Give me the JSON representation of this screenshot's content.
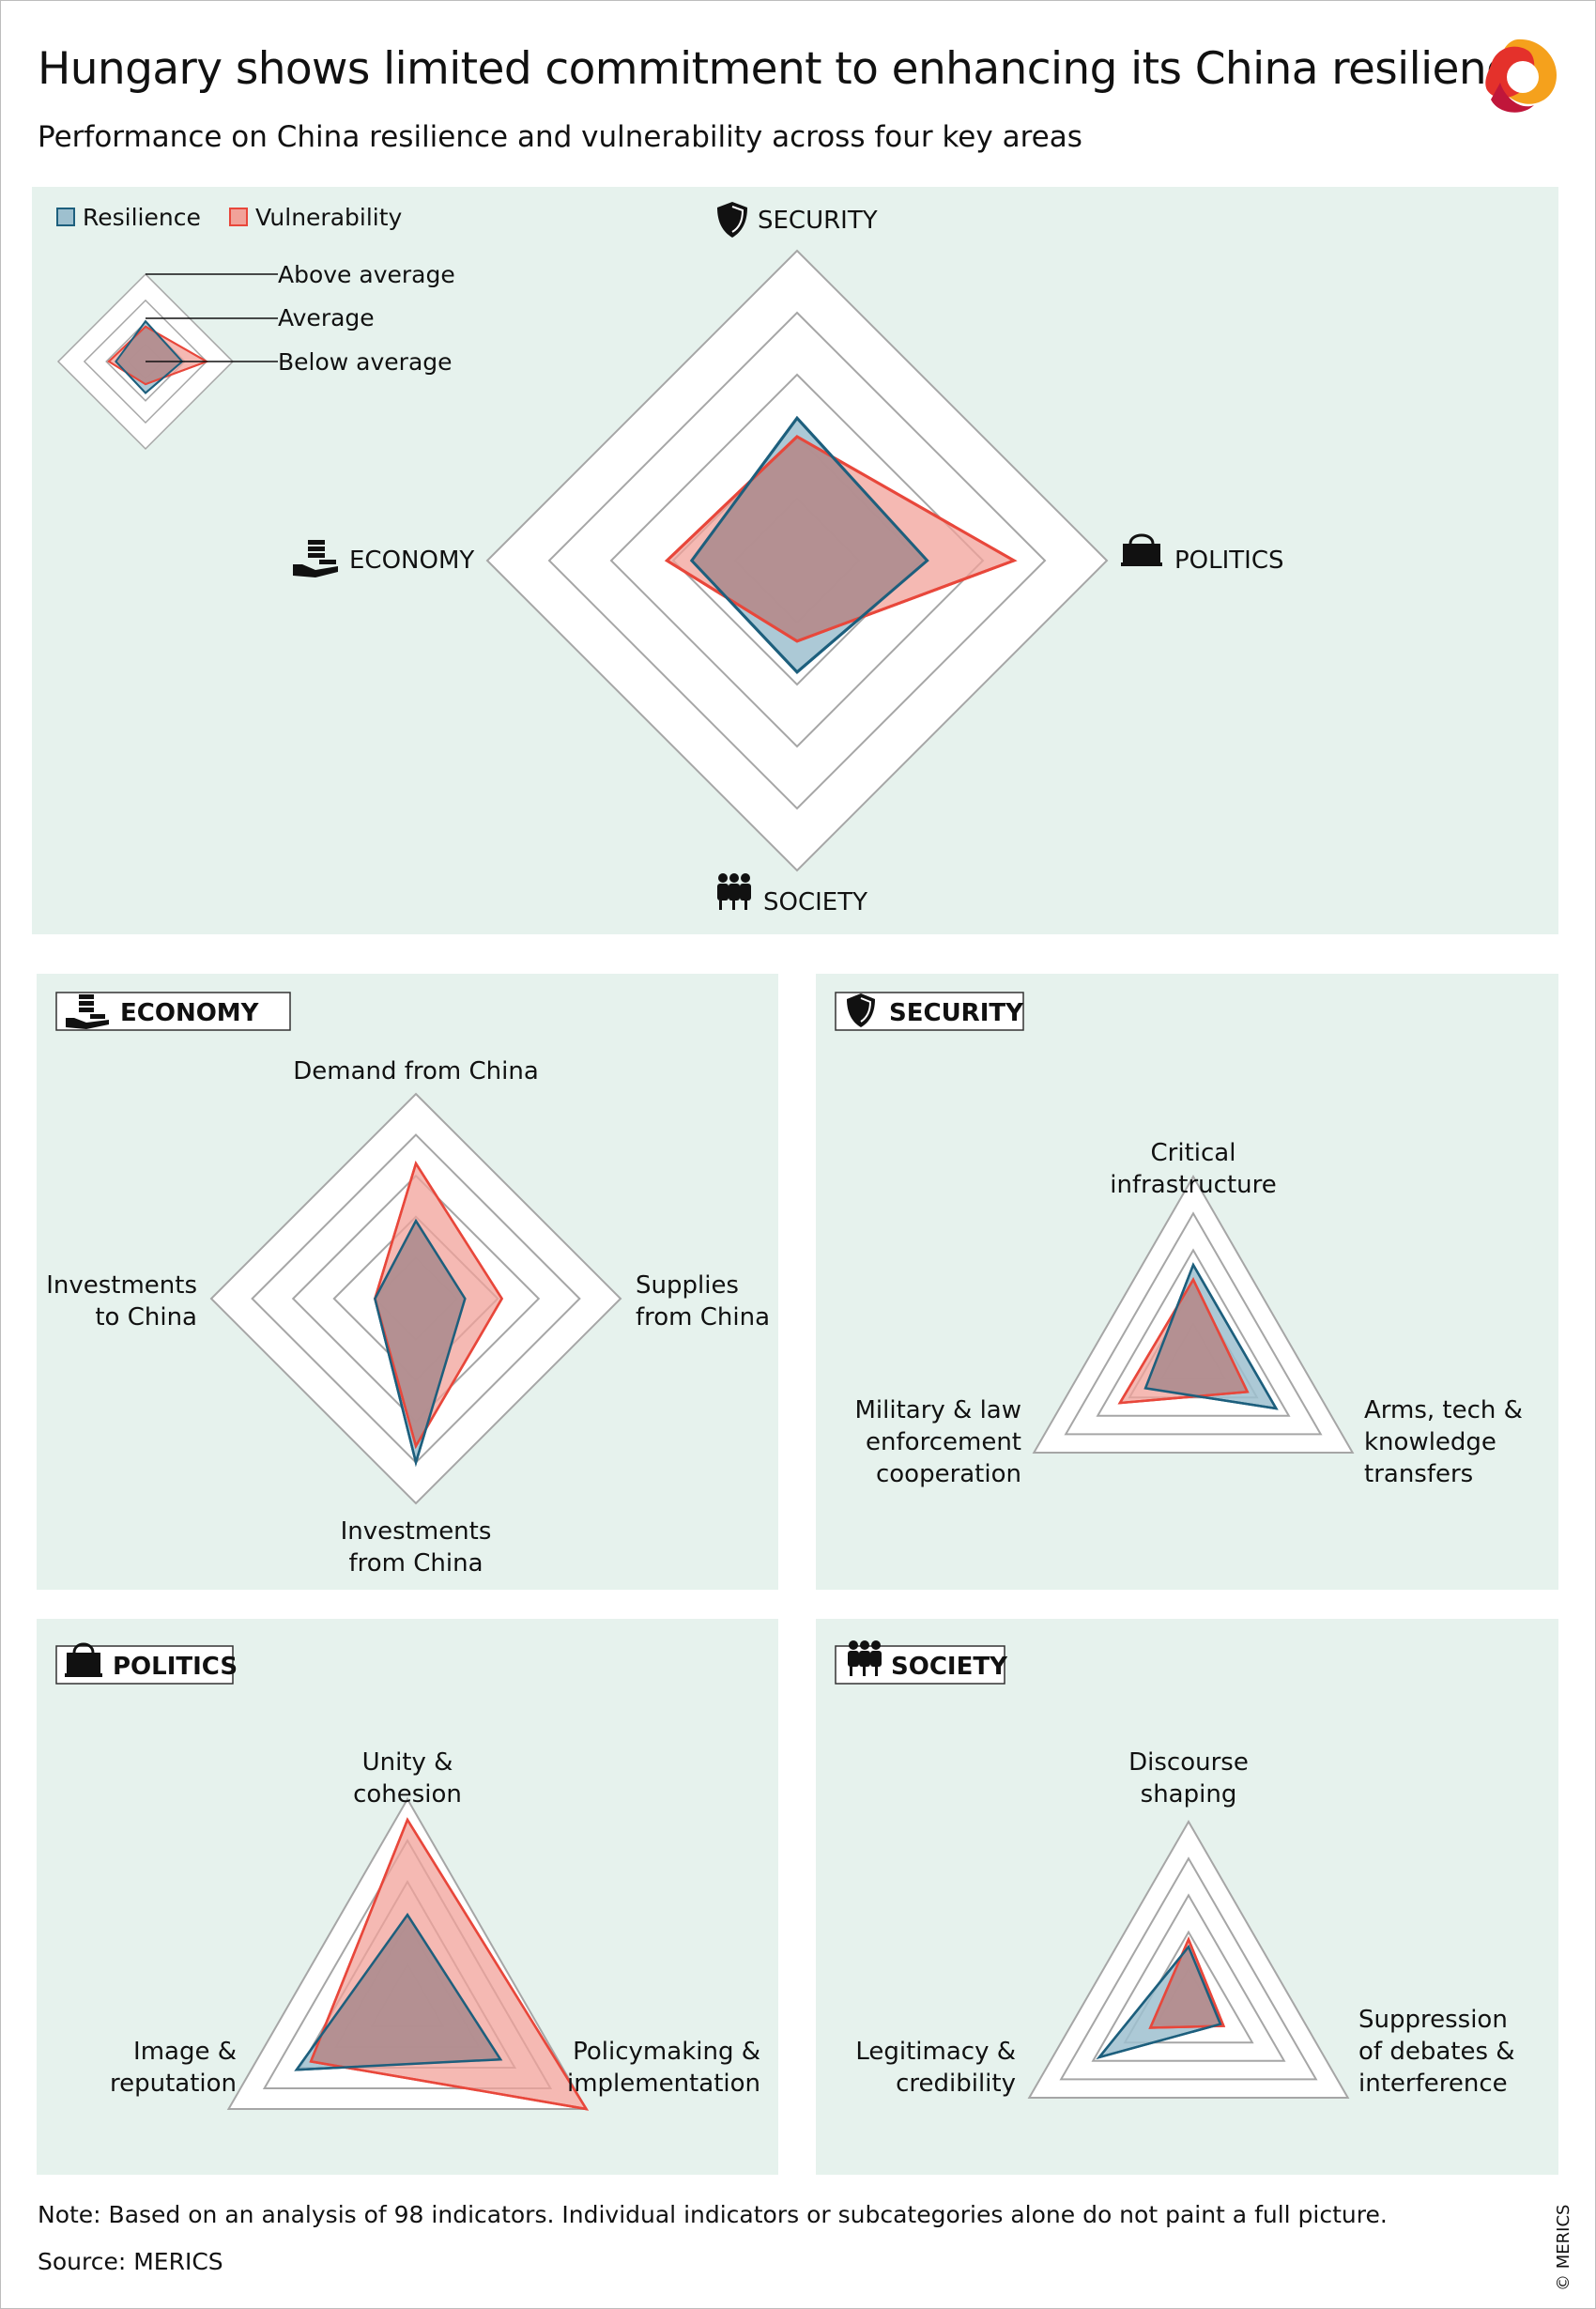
{
  "title": "Hungary shows limited commitment to enhancing its China resilience",
  "subtitle": "Performance on China resilience and vulnerability across four key areas",
  "note": "Note: Based on an analysis of 98 indicators. Individual indicators or subcategories alone do not paint a full picture.",
  "source": "Source: MERICS",
  "copyright": "© MERICS",
  "colors": {
    "background_panel": "#e6f2ed",
    "resilience": "#1d5f7d",
    "resilience_fill": "#9ec0cf",
    "vulnerability": "#e8473b",
    "vulnerability_fill": "#f1a299",
    "grid": "#a6a6a6"
  },
  "legend": {
    "resilience": "Resilience",
    "vulnerability": "Vulnerability"
  },
  "scale_key": {
    "above": "Above average",
    "average": "Average",
    "below": "Below average"
  },
  "areas": {
    "security": "SECURITY",
    "politics": "POLITICS",
    "society": "SOCIETY",
    "economy": "ECONOMY"
  },
  "sub_axes": {
    "economy": [
      "Demand from China",
      "Supplies from China",
      "Investments from China",
      "Investments to China"
    ],
    "security": [
      "Critical infrastructure",
      "Arms, tech & knowledge transfers",
      "Military & law enforcement cooperation"
    ],
    "politics": [
      "Unity & cohesion",
      "Policymaking & implementation",
      "Image & reputation"
    ],
    "society": [
      "Discourse shaping",
      "Suppression of debates & interference",
      "Legitimacy & credibility"
    ]
  },
  "icons": {
    "security": "shield-icon",
    "politics": "bag-icon",
    "society": "people-icon",
    "economy": "coins-hand-icon"
  },
  "chart_data": [
    {
      "type": "radar",
      "name": "overview",
      "axes": [
        "SECURITY",
        "POLITICS",
        "SOCIETY",
        "ECONOMY"
      ],
      "scale": [
        "Below average",
        "Average",
        "Above average"
      ],
      "range": [
        0,
        5
      ],
      "series": [
        {
          "name": "Resilience",
          "values": [
            2.3,
            2.1,
            1.8,
            1.7
          ]
        },
        {
          "name": "Vulnerability",
          "values": [
            2.0,
            3.5,
            1.3,
            2.1
          ]
        }
      ]
    },
    {
      "type": "radar",
      "name": "economy",
      "axes": [
        "Demand from China",
        "Supplies from China",
        "Investments from China",
        "Investments to China"
      ],
      "range": [
        0,
        5
      ],
      "series": [
        {
          "name": "Resilience",
          "values": [
            1.9,
            1.2,
            4.0,
            1.0
          ]
        },
        {
          "name": "Vulnerability",
          "values": [
            3.3,
            2.1,
            3.6,
            1.0
          ]
        }
      ]
    },
    {
      "type": "radar",
      "name": "security",
      "axes": [
        "Critical infrastructure",
        "Arms, tech & knowledge transfers",
        "Military & law enforcement cooperation"
      ],
      "range": [
        0,
        5
      ],
      "series": [
        {
          "name": "Resilience",
          "values": [
            2.6,
            2.6,
            1.5
          ]
        },
        {
          "name": "Vulnerability",
          "values": [
            2.2,
            1.7,
            2.3
          ]
        }
      ]
    },
    {
      "type": "radar",
      "name": "politics",
      "axes": [
        "Unity & cohesion",
        "Policymaking & implementation",
        "Image & reputation"
      ],
      "range": [
        0,
        5
      ],
      "series": [
        {
          "name": "Resilience",
          "values": [
            2.2,
            2.6,
            3.1
          ]
        },
        {
          "name": "Vulnerability",
          "values": [
            4.5,
            5.0,
            2.7
          ]
        }
      ]
    },
    {
      "type": "radar",
      "name": "society",
      "axes": [
        "Discourse shaping",
        "Suppression of debates & interference",
        "Legitimacy & credibility"
      ],
      "range": [
        0,
        5
      ],
      "series": [
        {
          "name": "Resilience",
          "values": [
            1.6,
            1.0,
            2.8
          ]
        },
        {
          "name": "Vulnerability",
          "values": [
            1.8,
            1.1,
            1.2
          ]
        }
      ]
    }
  ]
}
